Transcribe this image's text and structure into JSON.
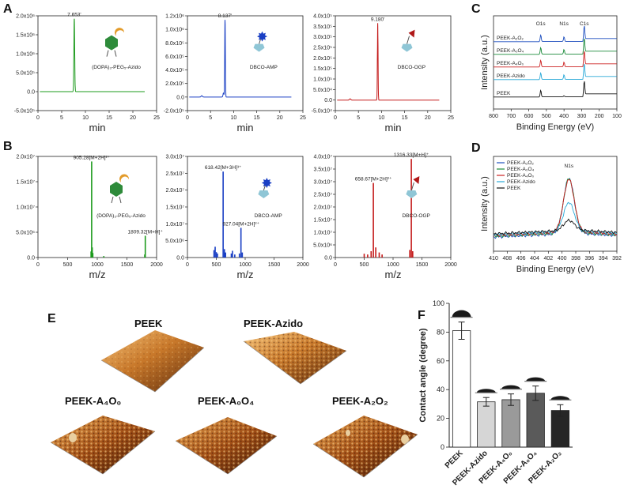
{
  "panels": {
    "A": "A",
    "B": "B",
    "C": "C",
    "D": "D",
    "E": "E",
    "F": "F"
  },
  "colors": {
    "green": "#1e9b1e",
    "blue": "#1a3fc4",
    "red": "#c41a1a",
    "xps": [
      "#1f4fbf",
      "#1a8a3a",
      "#cc2222",
      "#2aa9d8",
      "#111111"
    ],
    "bar_fills": [
      "#ffffff",
      "#d6d6d6",
      "#9a9a9a",
      "#5a5a5a",
      "#262626"
    ]
  },
  "chart_data": [
    {
      "id": "A1",
      "type": "line",
      "color": "green",
      "xlabel": "min",
      "xlim": [
        0,
        25
      ],
      "xticks": [
        "0",
        "5",
        "10",
        "15",
        "20",
        "25"
      ],
      "ylim": [
        -500000,
        2000000
      ],
      "yticks": [
        "-5.0x10⁵",
        "0.0",
        "5.0x10⁵",
        "1.0x10⁶",
        "1.5x10⁶",
        "2.0x10⁶"
      ],
      "peaks": [
        {
          "x": 7.653,
          "y": 1930000,
          "w": 0.12
        }
      ],
      "labels": [
        {
          "text": "7.653'",
          "x": 7.653,
          "y": 1930000
        }
      ],
      "molecule": "(DOPA)₃-PEG₅-Azido",
      "x_end": 22.5
    },
    {
      "id": "A2",
      "type": "line",
      "color": "blue",
      "xlabel": "min",
      "xlim": [
        0,
        25
      ],
      "xticks": [
        "0",
        "5",
        "10",
        "15",
        "20",
        "25"
      ],
      "ylim": [
        -200000,
        1200000
      ],
      "yticks": [
        "-2.0x10⁵",
        "0.0",
        "2.0x10⁵",
        "4.0x10⁵",
        "6.0x10⁵",
        "8.0x10⁵",
        "1.0x10⁶",
        "1.2x10⁶"
      ],
      "peaks": [
        {
          "x": 8.137,
          "y": 1140000,
          "w": 0.1
        },
        {
          "x": 7.8,
          "y": 60000,
          "w": 0.15
        },
        {
          "x": 3.1,
          "y": 20000,
          "w": 0.2
        }
      ],
      "labels": [
        {
          "text": "8.137'",
          "x": 8.137,
          "y": 1140000
        }
      ],
      "molecule": "DBCO-AMP",
      "x_end": 22.5
    },
    {
      "id": "A3",
      "type": "line",
      "color": "red",
      "xlabel": "min",
      "xlim": [
        0,
        25
      ],
      "xticks": [
        "0",
        "5",
        "10",
        "15",
        "20",
        "25"
      ],
      "ylim": [
        -50000,
        400000
      ],
      "yticks": [
        "-5.0x10⁴",
        "0.0",
        "5.0x10⁴",
        "1.0x10⁵",
        "1.5x10⁵",
        "2.0x10⁵",
        "2.5x10⁵",
        "3.0x10⁵",
        "3.5x10⁵",
        "4.0x10⁵"
      ],
      "peaks": [
        {
          "x": 9.18,
          "y": 365000,
          "w": 0.1
        },
        {
          "x": 3.2,
          "y": 6000,
          "w": 0.2
        }
      ],
      "labels": [
        {
          "text": "9.180'",
          "x": 9.18,
          "y": 365000
        }
      ],
      "molecule": "DBCO-OGP",
      "x_end": 22.5
    },
    {
      "id": "B1",
      "type": "bar",
      "color": "green",
      "xlabel": "m/z",
      "xlim": [
        0,
        2000
      ],
      "xticks": [
        "0",
        "500",
        "1000",
        "1500",
        "2000"
      ],
      "ylim": [
        0,
        20000000
      ],
      "yticks": [
        "0.0",
        "5.0x10⁶",
        "1.0x10⁷",
        "1.5x10⁷",
        "2.0x10⁷"
      ],
      "sticks": [
        [
          905.28,
          19000000
        ],
        [
          895,
          1200000
        ],
        [
          915,
          2000000
        ],
        [
          925,
          900000
        ],
        [
          1809.32,
          4300000
        ],
        [
          1800,
          600000
        ],
        [
          1110,
          300000
        ]
      ],
      "labels": [
        {
          "text": "905.28[M+2H]²⁺",
          "x": 905.28,
          "y": 19000000
        },
        {
          "text": "1809.32[M+H]⁺",
          "x": 1809.32,
          "y": 4300000
        }
      ],
      "molecule": "(DOPA)₃-PEG₅-Azido"
    },
    {
      "id": "B2",
      "type": "bar",
      "color": "blue",
      "xlabel": "m/z",
      "xlim": [
        0,
        2000
      ],
      "xticks": [
        "0",
        "500",
        "1000",
        "1500",
        "2000"
      ],
      "ylim": [
        0,
        30000000
      ],
      "yticks": [
        "0.0",
        "5.0x10⁶",
        "1.0x10⁷",
        "1.5x10⁷",
        "2.0x10⁷",
        "2.5x10⁷",
        "3.0x10⁷"
      ],
      "sticks": [
        [
          618.42,
          25500000
        ],
        [
          927.04,
          8800000
        ],
        [
          460,
          2200000
        ],
        [
          480,
          3200000
        ],
        [
          500,
          1600000
        ],
        [
          520,
          1200000
        ],
        [
          640,
          2500000
        ],
        [
          660,
          1500000
        ],
        [
          760,
          1200000
        ],
        [
          780,
          2000000
        ],
        [
          820,
          900000
        ],
        [
          900,
          1200000
        ],
        [
          950,
          1500000
        ]
      ],
      "labels": [
        {
          "text": "618.42[M+3H]³⁺",
          "x": 618.42,
          "y": 25500000
        },
        {
          "text": "927.04[M+2H]²⁺",
          "x": 927.04,
          "y": 8800000
        }
      ],
      "molecule": "DBCO-AMP"
    },
    {
      "id": "B3",
      "type": "bar",
      "color": "red",
      "xlabel": "m/z",
      "xlim": [
        0,
        2000
      ],
      "xticks": [
        "0",
        "500",
        "1000",
        "1500",
        "2000"
      ],
      "ylim": [
        0,
        40000000
      ],
      "yticks": [
        "0.0",
        "5.0x10⁶",
        "1.0x10⁷",
        "1.5x10⁷",
        "2.0x10⁷",
        "2.5x10⁷",
        "3.0x10⁷",
        "3.5x10⁷",
        "4.0x10⁷"
      ],
      "sticks": [
        [
          658.67,
          29500000
        ],
        [
          1316.33,
          39000000
        ],
        [
          500,
          1500000
        ],
        [
          560,
          1200000
        ],
        [
          620,
          2500000
        ],
        [
          700,
          4000000
        ],
        [
          760,
          2000000
        ],
        [
          810,
          1200000
        ],
        [
          1290,
          3000000
        ],
        [
          1340,
          2500000
        ]
      ],
      "labels": [
        {
          "text": "658.67[M+2H]²⁺",
          "x": 658.67,
          "y": 29500000
        },
        {
          "text": "1316.33[M+H]⁺",
          "x": 1316.33,
          "y": 39000000
        }
      ],
      "molecule": "DBCO-OGP"
    },
    {
      "id": "C",
      "type": "line",
      "title": "",
      "xlabel": "Binding Energy (eV)",
      "ylabel": "Intensity (a.u.)",
      "xlim": [
        800,
        100
      ],
      "xticks": [
        "800",
        "700",
        "600",
        "500",
        "400",
        "300",
        "200",
        "100"
      ],
      "peak_labels": [
        {
          "text": "O1s",
          "x": 532
        },
        {
          "text": "N1s",
          "x": 400
        },
        {
          "text": "C1s",
          "x": 285
        }
      ],
      "series": [
        {
          "name": "PEEK-A₂O₂",
          "offset": 4
        },
        {
          "name": "PEEK-A₀O₄",
          "offset": 3
        },
        {
          "name": "PEEK-A₄O₀",
          "offset": 2
        },
        {
          "name": "PEEK-Azido",
          "offset": 1
        },
        {
          "name": "PEEK",
          "offset": 0
        }
      ]
    },
    {
      "id": "D",
      "type": "line",
      "xlabel": "Binding Energy (eV)",
      "ylabel": "Intensity (a.u.)",
      "xlim": [
        410,
        392
      ],
      "xticks": [
        "410",
        "408",
        "406",
        "404",
        "402",
        "400",
        "398",
        "396",
        "394",
        "392"
      ],
      "peak_label": {
        "text": "N1s",
        "x": 399
      },
      "series": [
        {
          "name": "PEEK-A₂O₂",
          "amp": 1.0
        },
        {
          "name": "PEEK-A₀O₄",
          "amp": 0.98
        },
        {
          "name": "PEEK-A₄O₀",
          "amp": 0.95
        },
        {
          "name": "PEEK-Azido",
          "amp": 0.52
        },
        {
          "name": "PEEK",
          "amp": 0.18
        }
      ]
    },
    {
      "id": "F",
      "type": "bar",
      "ylabel": "Contact angle (degree)",
      "ylim": [
        0,
        100
      ],
      "yticks": [
        "0",
        "20",
        "40",
        "60",
        "80",
        "100"
      ],
      "categories": [
        "PEEK",
        "PEEK-Azido",
        "PEEK-A₄O₀",
        "PEEK-A₀O₄",
        "PEEK-A₂O₂"
      ],
      "values": [
        81,
        31.5,
        33,
        37.5,
        25.5
      ],
      "errors": [
        6,
        3,
        4,
        5,
        4
      ]
    }
  ],
  "afm": {
    "titles": [
      "PEEK",
      "PEEK-Azido",
      "PEEK-A₄O₀",
      "PEEK-A₀O₄",
      "PEEK-A₂O₂"
    ]
  }
}
